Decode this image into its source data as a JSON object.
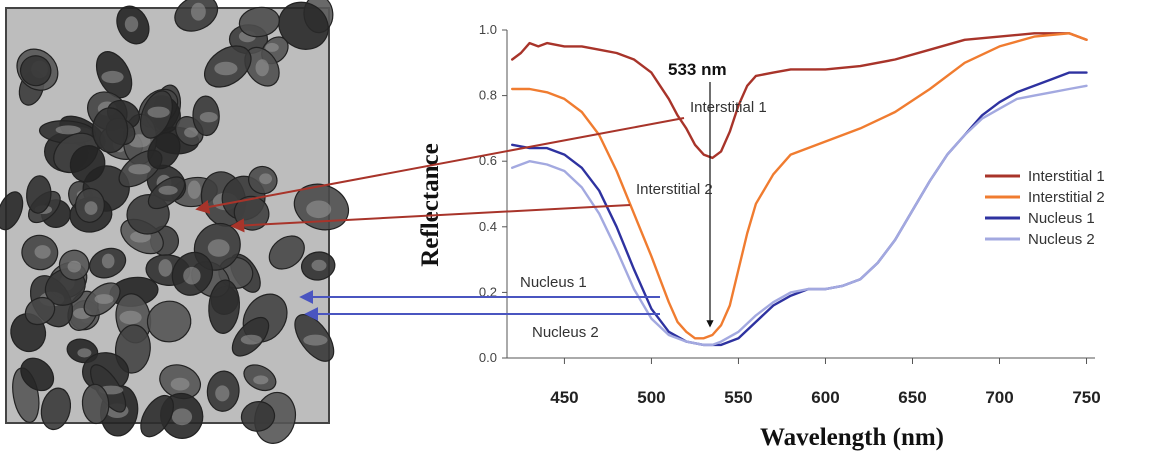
{
  "micrograph": {
    "description_icon": "histology-micrograph"
  },
  "chart_data": {
    "type": "line",
    "title": "",
    "xlabel": "Wavelength  (nm)",
    "ylabel": "Reflectance",
    "xlim": [
      417,
      752
    ],
    "ylim": [
      0,
      1.0
    ],
    "x_ticks": [
      450,
      500,
      550,
      600,
      650,
      700,
      750
    ],
    "y_ticks": [
      0.0,
      0.2,
      0.4,
      0.6,
      0.8,
      1.0
    ],
    "y_tick_labels": [
      "0.0",
      "0.2",
      "0.4",
      "0.6",
      "0.8",
      "1.0"
    ],
    "legend_position": "right",
    "series": [
      {
        "name": "Interstitial 1",
        "color": "#a8342a",
        "x": [
          420,
          425,
          430,
          435,
          440,
          450,
          460,
          470,
          480,
          490,
          500,
          505,
          510,
          515,
          520,
          525,
          530,
          535,
          540,
          545,
          550,
          555,
          560,
          570,
          580,
          600,
          620,
          640,
          660,
          680,
          700,
          720,
          740,
          750
        ],
        "y": [
          0.91,
          0.93,
          0.96,
          0.95,
          0.96,
          0.95,
          0.95,
          0.94,
          0.93,
          0.91,
          0.87,
          0.83,
          0.79,
          0.74,
          0.7,
          0.65,
          0.62,
          0.61,
          0.63,
          0.69,
          0.77,
          0.83,
          0.86,
          0.87,
          0.88,
          0.88,
          0.89,
          0.91,
          0.94,
          0.97,
          0.98,
          0.99,
          0.99,
          0.97
        ]
      },
      {
        "name": "Interstitial 2",
        "color": "#f07c30",
        "x": [
          420,
          425,
          430,
          440,
          450,
          460,
          470,
          480,
          490,
          500,
          505,
          510,
          515,
          520,
          525,
          530,
          535,
          540,
          545,
          550,
          555,
          560,
          570,
          580,
          600,
          620,
          640,
          660,
          680,
          700,
          720,
          740,
          750
        ],
        "y": [
          0.82,
          0.82,
          0.82,
          0.81,
          0.79,
          0.75,
          0.68,
          0.57,
          0.44,
          0.31,
          0.24,
          0.17,
          0.11,
          0.08,
          0.06,
          0.06,
          0.07,
          0.1,
          0.16,
          0.27,
          0.38,
          0.47,
          0.56,
          0.62,
          0.66,
          0.7,
          0.75,
          0.82,
          0.9,
          0.95,
          0.98,
          0.99,
          0.97
        ]
      },
      {
        "name": "Nucleus 1",
        "color": "#2e32a0",
        "x": [
          420,
          430,
          440,
          450,
          460,
          470,
          480,
          490,
          500,
          510,
          520,
          530,
          535,
          540,
          550,
          560,
          570,
          580,
          590,
          600,
          610,
          620,
          630,
          640,
          650,
          660,
          670,
          680,
          690,
          700,
          710,
          720,
          730,
          740,
          750
        ],
        "y": [
          0.65,
          0.64,
          0.64,
          0.62,
          0.58,
          0.51,
          0.4,
          0.27,
          0.15,
          0.08,
          0.05,
          0.04,
          0.04,
          0.04,
          0.06,
          0.11,
          0.16,
          0.19,
          0.21,
          0.21,
          0.22,
          0.24,
          0.29,
          0.36,
          0.45,
          0.54,
          0.62,
          0.68,
          0.74,
          0.78,
          0.81,
          0.83,
          0.85,
          0.87,
          0.87
        ]
      },
      {
        "name": "Nucleus 2",
        "color": "#a3a9e0",
        "x": [
          420,
          430,
          440,
          450,
          460,
          470,
          480,
          490,
          500,
          510,
          520,
          530,
          535,
          540,
          550,
          560,
          570,
          580,
          590,
          600,
          610,
          620,
          630,
          640,
          650,
          660,
          670,
          680,
          690,
          700,
          710,
          720,
          730,
          740,
          750
        ],
        "y": [
          0.58,
          0.6,
          0.59,
          0.57,
          0.52,
          0.44,
          0.33,
          0.21,
          0.12,
          0.07,
          0.05,
          0.04,
          0.04,
          0.05,
          0.08,
          0.13,
          0.17,
          0.2,
          0.21,
          0.21,
          0.22,
          0.24,
          0.29,
          0.36,
          0.45,
          0.54,
          0.62,
          0.68,
          0.73,
          0.76,
          0.79,
          0.8,
          0.81,
          0.82,
          0.83
        ]
      }
    ],
    "annotations": [
      {
        "id": "peak",
        "text": "533 nm",
        "x": 533
      },
      {
        "id": "int1",
        "text": "Interstitial 1"
      },
      {
        "id": "int2",
        "text": "Interstitial 2"
      },
      {
        "id": "nuc1",
        "text": "Nucleus 1"
      },
      {
        "id": "nuc2",
        "text": "Nucleus 2"
      }
    ]
  }
}
